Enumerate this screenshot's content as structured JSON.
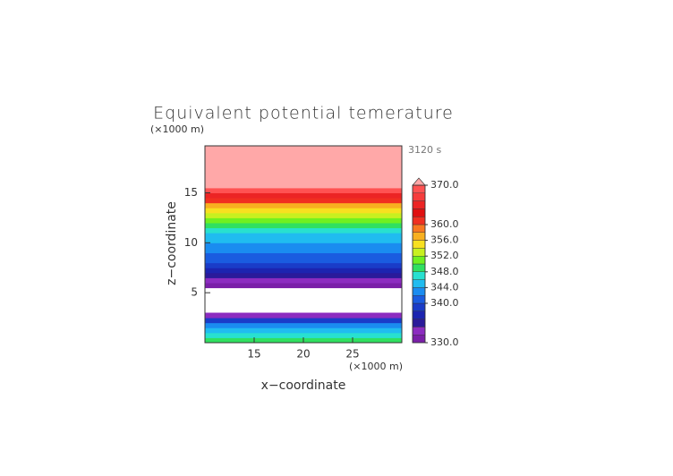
{
  "chart_data": {
    "type": "profile-contour",
    "title": "Equivalent potential temerature",
    "time_label": "3120 s",
    "x_label": "x−coordinate",
    "y_label": "z−coordinate",
    "x_unit": "(×1000 m)",
    "y_unit": "(×1000 m)",
    "xlim": [
      10,
      30
    ],
    "ylim": [
      0,
      19.7
    ],
    "xticks": [
      15,
      20,
      25
    ],
    "yticks": [
      5,
      10,
      15
    ],
    "z": [
      0.25,
      0.75,
      1.25,
      1.75,
      2.25,
      2.75,
      3.25,
      3.75,
      4.25,
      4.75,
      5.25,
      5.75,
      6.25,
      6.75,
      7.25,
      7.75,
      8.25,
      8.75,
      9.25,
      9.75,
      10.25,
      10.75,
      11.25,
      11.75,
      12.25,
      12.75,
      13.25,
      13.75,
      14.25,
      14.75,
      15.25,
      15.75,
      16.25,
      16.75,
      17.25,
      17.75,
      18.25,
      18.75,
      19.25,
      19.75
    ],
    "values": [
      349,
      347,
      345,
      343,
      339,
      333,
      null,
      null,
      null,
      null,
      null,
      331,
      333,
      335,
      337,
      339,
      340,
      341,
      342,
      343,
      344,
      345,
      346,
      348,
      350,
      353,
      355,
      357,
      361,
      365,
      369,
      372,
      372,
      372,
      372,
      372,
      372,
      372,
      372,
      372
    ],
    "levels": [
      330,
      332,
      334,
      336,
      338,
      340,
      342,
      344,
      346,
      348,
      350,
      352,
      354,
      356,
      358,
      360,
      362,
      364,
      366,
      368,
      370
    ],
    "colors": [
      "#7a1fa8",
      "#8c2cc0",
      "#2a1a9a",
      "#1c24b0",
      "#1a3cc8",
      "#1a5ce0",
      "#1a8cf0",
      "#20bcf0",
      "#28e0d0",
      "#30e060",
      "#70f020",
      "#c8f020",
      "#f8e020",
      "#f8b020",
      "#f87820",
      "#f03020",
      "#e01010",
      "#ec2424",
      "#f63c3c",
      "#ff5252"
    ],
    "over_color": "#ffa8a8",
    "cbar_ticks": [
      {
        "value": 330,
        "label": "330.0"
      },
      {
        "value": 340,
        "label": "340.0"
      },
      {
        "value": 344,
        "label": "344.0"
      },
      {
        "value": 348,
        "label": "348.0"
      },
      {
        "value": 352,
        "label": "352.0"
      },
      {
        "value": 356,
        "label": "356.0"
      },
      {
        "value": 360,
        "label": "360.0"
      },
      {
        "value": 370,
        "label": "370.0"
      }
    ]
  }
}
